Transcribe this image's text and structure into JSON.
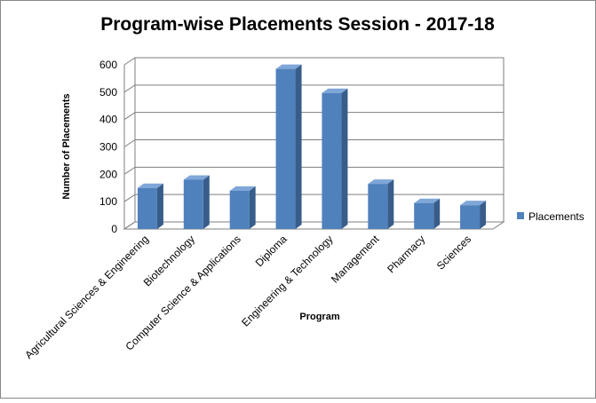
{
  "chart_data": {
    "type": "bar3d",
    "title": "Program-wise Placements Session - 2017-18",
    "x_label": "Program",
    "y_label": "Number of Placements",
    "categories": [
      "Agricultural Sciences & Engineering",
      "Biotechnology",
      "Computer Science & Applications",
      "Diploma",
      "Engineering & Technology",
      "Management",
      "Pharmacy",
      "Sciences"
    ],
    "series": [
      {
        "name": "Placements",
        "color": "#4f81bd",
        "values": [
          150,
          180,
          140,
          585,
          497,
          165,
          95,
          87
        ]
      }
    ],
    "ylim": [
      0,
      600
    ],
    "yticks": [
      0,
      100,
      200,
      300,
      400,
      500,
      600
    ],
    "grid": true,
    "legend": "right"
  }
}
